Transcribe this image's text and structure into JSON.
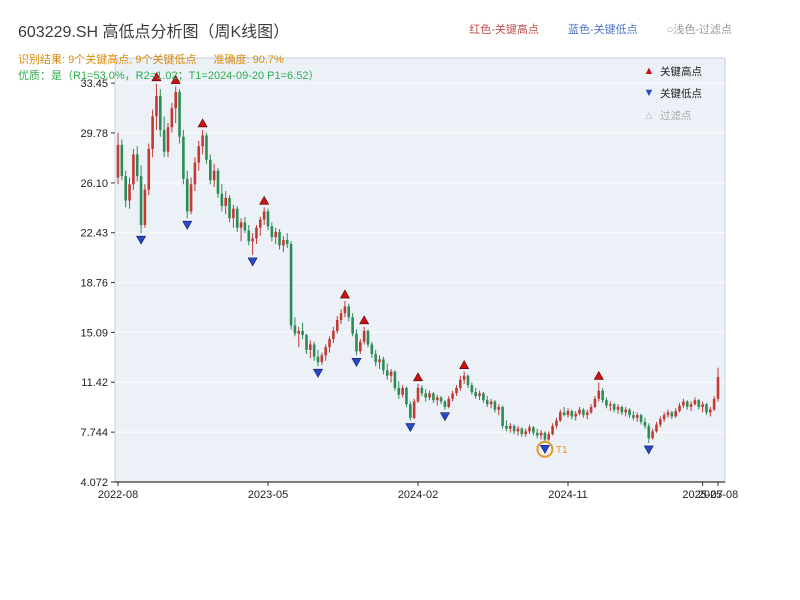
{
  "header": {
    "title": "603229.SH 高低点分析图（周K线图）",
    "legend": {
      "red": "红色-关键高点",
      "blue": "蓝色-关键低点",
      "filter": "○浅色-过滤点"
    },
    "result": "识别结果: 9个关键高点, 9个关键低点",
    "accuracy": "准确度: 90.7%",
    "quality": "优质：是（R1=53.0%，R2=1.02；T1=2024-09-20 P1=6.52）"
  },
  "plot_legend": {
    "high": "关键高点",
    "low": "关键低点",
    "filter": "过滤点"
  },
  "chart_data": {
    "type": "candlestick",
    "title": "603229.SH 高低点分析图（周K线图）",
    "frequency": "weekly",
    "grid": true,
    "legend_position": "top-right-inside",
    "y_ticks": [
      33.45,
      29.78,
      26.1,
      22.43,
      18.76,
      15.09,
      11.42,
      7.744,
      4.072
    ],
    "y_domain": [
      4.072,
      35.3
    ],
    "x_ticks": [
      {
        "label": "2022-08",
        "week": 0
      },
      {
        "label": "2023-05",
        "week": 39
      },
      {
        "label": "2024-02",
        "week": 78
      },
      {
        "label": "2024-11",
        "week": 117
      },
      {
        "label": "2025-07",
        "week": 152
      },
      {
        "label": "2025-08",
        "week": 156
      }
    ],
    "candles": [
      [
        26.5,
        29.8,
        26.0,
        28.9
      ],
      [
        28.9,
        29.3,
        26.3,
        26.6
      ],
      [
        26.6,
        27.0,
        24.3,
        24.8
      ],
      [
        24.8,
        26.5,
        24.2,
        26.0
      ],
      [
        26.0,
        28.6,
        25.6,
        28.2
      ],
      [
        28.2,
        28.8,
        26.2,
        26.6
      ],
      [
        26.6,
        27.4,
        22.4,
        23.0
      ],
      [
        23.0,
        26.0,
        22.8,
        25.6
      ],
      [
        25.6,
        29.0,
        25.2,
        28.6
      ],
      [
        28.6,
        31.5,
        28.0,
        31.0
      ],
      [
        31.0,
        33.4,
        30.0,
        32.5
      ],
      [
        32.5,
        33.0,
        29.5,
        30.0
      ],
      [
        30.0,
        31.0,
        28.0,
        28.4
      ],
      [
        28.4,
        30.5,
        28.0,
        30.2
      ],
      [
        30.2,
        32.0,
        29.8,
        31.6
      ],
      [
        31.6,
        33.2,
        30.5,
        32.8
      ],
      [
        32.8,
        33.0,
        29.0,
        29.5
      ],
      [
        29.5,
        30.0,
        26.0,
        26.4
      ],
      [
        26.4,
        27.0,
        23.5,
        24.0
      ],
      [
        24.0,
        26.5,
        23.8,
        26.0
      ],
      [
        26.0,
        28.0,
        25.5,
        27.6
      ],
      [
        27.6,
        29.2,
        27.0,
        28.8
      ],
      [
        28.8,
        30.0,
        28.2,
        29.6
      ],
      [
        29.6,
        29.8,
        27.5,
        27.8
      ],
      [
        27.8,
        28.2,
        26.0,
        26.3
      ],
      [
        26.3,
        27.5,
        25.8,
        27.0
      ],
      [
        27.0,
        27.2,
        25.0,
        25.3
      ],
      [
        25.3,
        26.0,
        24.0,
        24.4
      ],
      [
        24.4,
        25.5,
        23.8,
        25.0
      ],
      [
        25.0,
        25.2,
        23.2,
        23.5
      ],
      [
        23.5,
        24.5,
        22.8,
        24.2
      ],
      [
        24.2,
        24.4,
        22.5,
        22.8
      ],
      [
        22.8,
        23.5,
        21.8,
        23.2
      ],
      [
        23.2,
        23.6,
        22.4,
        22.6
      ],
      [
        22.6,
        23.0,
        21.5,
        21.8
      ],
      [
        21.8,
        22.4,
        20.8,
        22.0
      ],
      [
        22.0,
        23.0,
        21.6,
        22.8
      ],
      [
        22.8,
        23.6,
        22.2,
        23.4
      ],
      [
        23.4,
        24.3,
        23.0,
        24.0
      ],
      [
        24.0,
        24.2,
        22.6,
        22.9
      ],
      [
        22.9,
        23.2,
        21.8,
        22.1
      ],
      [
        22.1,
        22.8,
        21.6,
        22.5
      ],
      [
        22.5,
        22.7,
        21.2,
        21.5
      ],
      [
        21.5,
        22.2,
        21.0,
        21.9
      ],
      [
        21.9,
        22.4,
        21.3,
        21.6
      ],
      [
        21.6,
        21.8,
        15.3,
        15.6
      ],
      [
        15.6,
        16.2,
        14.8,
        15.0
      ],
      [
        15.0,
        15.5,
        14.0,
        15.2
      ],
      [
        15.2,
        15.8,
        14.6,
        14.9
      ],
      [
        14.9,
        15.0,
        13.5,
        13.8
      ],
      [
        13.8,
        14.5,
        13.2,
        14.2
      ],
      [
        14.2,
        14.4,
        13.0,
        13.3
      ],
      [
        13.3,
        13.8,
        12.6,
        12.9
      ],
      [
        12.9,
        13.6,
        12.7,
        13.4
      ],
      [
        13.4,
        14.2,
        13.0,
        14.0
      ],
      [
        14.0,
        14.8,
        13.6,
        14.6
      ],
      [
        14.6,
        15.5,
        14.3,
        15.2
      ],
      [
        15.2,
        16.3,
        15.0,
        16.0
      ],
      [
        16.0,
        16.8,
        15.7,
        16.5
      ],
      [
        16.5,
        17.4,
        16.2,
        17.0
      ],
      [
        17.0,
        17.2,
        15.9,
        16.2
      ],
      [
        16.2,
        16.5,
        14.8,
        15.0
      ],
      [
        15.0,
        15.3,
        13.4,
        13.7
      ],
      [
        13.7,
        14.6,
        13.5,
        14.4
      ],
      [
        14.4,
        15.5,
        14.2,
        15.2
      ],
      [
        15.2,
        15.3,
        14.0,
        14.2
      ],
      [
        14.2,
        14.4,
        13.2,
        13.5
      ],
      [
        13.5,
        13.8,
        12.6,
        12.9
      ],
      [
        12.9,
        13.4,
        12.4,
        13.1
      ],
      [
        13.1,
        13.3,
        12.0,
        12.3
      ],
      [
        12.3,
        12.8,
        11.6,
        11.9
      ],
      [
        11.9,
        12.4,
        11.4,
        12.2
      ],
      [
        12.2,
        12.3,
        10.8,
        11.0
      ],
      [
        11.0,
        11.5,
        10.2,
        10.5
      ],
      [
        10.5,
        11.2,
        10.3,
        11.0
      ],
      [
        11.0,
        11.1,
        9.6,
        9.8
      ],
      [
        9.8,
        10.0,
        8.6,
        8.8
      ],
      [
        8.8,
        10.2,
        8.7,
        10.0
      ],
      [
        10.0,
        11.3,
        9.9,
        11.0
      ],
      [
        11.0,
        11.2,
        10.4,
        10.6
      ],
      [
        10.6,
        10.9,
        10.0,
        10.3
      ],
      [
        10.3,
        10.8,
        10.1,
        10.6
      ],
      [
        10.6,
        10.7,
        9.9,
        10.1
      ],
      [
        10.1,
        10.5,
        9.7,
        10.3
      ],
      [
        10.3,
        10.4,
        9.8,
        10.0
      ],
      [
        10.0,
        10.1,
        9.4,
        9.6
      ],
      [
        9.6,
        10.4,
        9.5,
        10.2
      ],
      [
        10.2,
        10.8,
        10.0,
        10.6
      ],
      [
        10.6,
        11.2,
        10.4,
        11.0
      ],
      [
        11.0,
        11.9,
        10.8,
        11.6
      ],
      [
        11.6,
        12.2,
        11.3,
        11.9
      ],
      [
        11.9,
        12.0,
        11.0,
        11.2
      ],
      [
        11.2,
        11.4,
        10.5,
        10.7
      ],
      [
        10.7,
        11.0,
        10.2,
        10.4
      ],
      [
        10.4,
        10.8,
        10.1,
        10.6
      ],
      [
        10.6,
        10.7,
        9.9,
        10.1
      ],
      [
        10.1,
        10.4,
        9.6,
        9.8
      ],
      [
        9.8,
        10.2,
        9.5,
        10.0
      ],
      [
        10.0,
        10.1,
        9.2,
        9.4
      ],
      [
        9.4,
        9.8,
        9.0,
        9.6
      ],
      [
        9.6,
        9.7,
        8.0,
        8.2
      ],
      [
        8.2,
        8.6,
        7.8,
        8.0
      ],
      [
        8.0,
        8.4,
        7.7,
        8.2
      ],
      [
        8.2,
        8.3,
        7.6,
        7.8
      ],
      [
        7.8,
        8.2,
        7.5,
        8.0
      ],
      [
        8.0,
        8.1,
        7.4,
        7.6
      ],
      [
        7.6,
        8.0,
        7.4,
        7.8
      ],
      [
        7.8,
        8.3,
        7.6,
        8.1
      ],
      [
        8.1,
        8.2,
        7.5,
        7.7
      ],
      [
        7.7,
        8.0,
        7.3,
        7.5
      ],
      [
        7.5,
        7.9,
        7.2,
        7.7
      ],
      [
        7.7,
        7.8,
        7.0,
        7.2
      ],
      [
        7.2,
        7.8,
        7.1,
        7.6
      ],
      [
        7.6,
        8.4,
        7.5,
        8.2
      ],
      [
        8.2,
        8.8,
        8.0,
        8.6
      ],
      [
        8.6,
        9.4,
        8.5,
        9.2
      ],
      [
        9.2,
        9.6,
        8.9,
        9.0
      ],
      [
        9.0,
        9.5,
        8.8,
        9.3
      ],
      [
        9.3,
        9.4,
        8.7,
        8.9
      ],
      [
        8.9,
        9.3,
        8.6,
        9.1
      ],
      [
        9.1,
        9.6,
        9.0,
        9.4
      ],
      [
        9.4,
        9.5,
        8.8,
        9.0
      ],
      [
        9.0,
        9.4,
        8.7,
        9.2
      ],
      [
        9.2,
        9.8,
        9.1,
        9.6
      ],
      [
        9.6,
        10.4,
        9.5,
        10.2
      ],
      [
        10.2,
        11.4,
        10.0,
        10.8
      ],
      [
        10.8,
        11.0,
        9.9,
        10.1
      ],
      [
        10.1,
        10.3,
        9.5,
        9.7
      ],
      [
        9.7,
        10.0,
        9.3,
        9.8
      ],
      [
        9.8,
        9.9,
        9.2,
        9.4
      ],
      [
        9.4,
        9.8,
        9.1,
        9.6
      ],
      [
        9.6,
        9.7,
        9.0,
        9.2
      ],
      [
        9.2,
        9.6,
        8.9,
        9.4
      ],
      [
        9.4,
        9.5,
        8.8,
        9.0
      ],
      [
        9.0,
        9.3,
        8.6,
        8.8
      ],
      [
        8.8,
        9.2,
        8.5,
        9.0
      ],
      [
        9.0,
        9.1,
        8.3,
        8.5
      ],
      [
        8.5,
        8.8,
        8.0,
        8.2
      ],
      [
        8.2,
        8.4,
        6.95,
        7.3
      ],
      [
        7.3,
        8.0,
        7.2,
        7.8
      ],
      [
        7.8,
        8.5,
        7.7,
        8.3
      ],
      [
        8.3,
        8.9,
        8.1,
        8.7
      ],
      [
        8.7,
        9.2,
        8.5,
        9.0
      ],
      [
        9.0,
        9.4,
        8.8,
        9.2
      ],
      [
        9.2,
        9.3,
        8.7,
        8.9
      ],
      [
        8.9,
        9.5,
        8.8,
        9.3
      ],
      [
        9.3,
        9.9,
        9.2,
        9.7
      ],
      [
        9.7,
        10.2,
        9.5,
        10.0
      ],
      [
        10.0,
        10.1,
        9.4,
        9.6
      ],
      [
        9.6,
        10.0,
        9.3,
        9.8
      ],
      [
        9.8,
        10.3,
        9.7,
        10.1
      ],
      [
        10.1,
        10.2,
        9.4,
        9.6
      ],
      [
        9.6,
        10.0,
        9.2,
        9.8
      ],
      [
        9.8,
        9.9,
        9.0,
        9.2
      ],
      [
        9.2,
        9.6,
        8.9,
        9.4
      ],
      [
        9.4,
        10.4,
        9.3,
        10.2
      ],
      [
        10.2,
        12.5,
        10.0,
        11.8
      ]
    ],
    "key_highs": [
      {
        "index": 10,
        "price": 33.4
      },
      {
        "index": 15,
        "price": 33.2
      },
      {
        "index": 22,
        "price": 30.0
      },
      {
        "index": 38,
        "price": 24.3
      },
      {
        "index": 59,
        "price": 17.4
      },
      {
        "index": 64,
        "price": 15.5
      },
      {
        "index": 78,
        "price": 11.3
      },
      {
        "index": 90,
        "price": 12.2
      },
      {
        "index": 125,
        "price": 11.4
      }
    ],
    "key_lows": [
      {
        "index": 6,
        "price": 22.4
      },
      {
        "index": 18,
        "price": 23.5
      },
      {
        "index": 35,
        "price": 20.8
      },
      {
        "index": 52,
        "price": 12.6
      },
      {
        "index": 62,
        "price": 13.4
      },
      {
        "index": 76,
        "price": 8.6
      },
      {
        "index": 85,
        "price": 9.4
      },
      {
        "index": 111,
        "price": 7.0
      },
      {
        "index": 138,
        "price": 6.95
      }
    ],
    "t1_marker": {
      "index": 111,
      "label": "T1",
      "date": "2024-09-20"
    },
    "filtered_points": [],
    "colors": {
      "up": "#c23a32",
      "down": "#2e8b57",
      "key_high": "#cc1111",
      "key_low": "#2848c8",
      "t1": "#e09a28",
      "panel": "#ecf1f8",
      "axis": "#333333"
    }
  }
}
